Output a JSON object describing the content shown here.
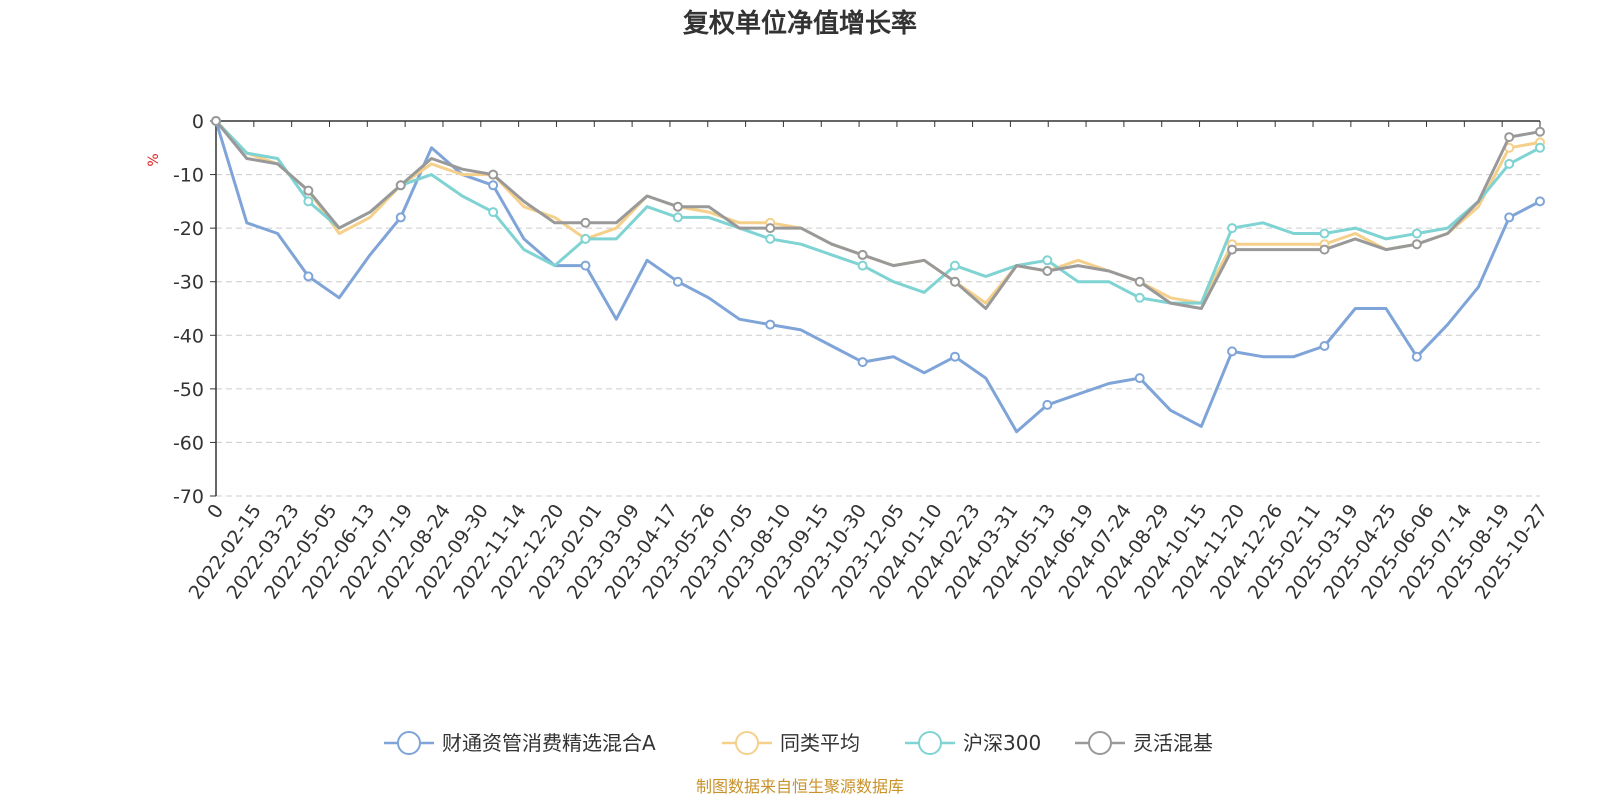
{
  "chart_data": {
    "type": "line",
    "title": "复权单位净值增长率",
    "ylabel": "%",
    "ylim": [
      -70,
      0
    ],
    "y_ticks": [
      0,
      -10,
      -20,
      -30,
      -40,
      -50,
      -60,
      -70
    ],
    "x_tick_labels": [
      "0",
      "2022-02-15",
      "2022-03-23",
      "2022-05-05",
      "2022-06-13",
      "2022-07-19",
      "2022-08-24",
      "2022-09-30",
      "2022-11-14",
      "2022-12-20",
      "2023-02-01",
      "2023-03-09",
      "2023-04-17",
      "2023-05-26",
      "2023-07-05",
      "2023-08-10",
      "2023-09-15",
      "2023-10-30",
      "2023-12-05",
      "2024-01-10",
      "2024-02-23",
      "2024-03-31",
      "2024-05-13",
      "2024-06-19",
      "2024-07-24",
      "2024-08-29",
      "2024-10-15",
      "2024-11-20",
      "2024-12-26",
      "2025-02-11",
      "2025-03-19",
      "2025-04-25",
      "2025-06-06",
      "2025-07-14",
      "2025-08-19",
      "2025-10-27"
    ],
    "grid": "horizontal-dashed",
    "legend_position": "bottom-center",
    "source_note": "制图数据来自恒生聚源数据库",
    "series": [
      {
        "name": "财通资管消费精选混合A",
        "color": "#7fa4d8",
        "values": [
          0,
          -19,
          -21,
          -29,
          -33,
          -25,
          -18,
          -5,
          -10,
          -12,
          -22,
          -27,
          -27,
          -37,
          -26,
          -30,
          -33,
          -37,
          -38,
          -39,
          -42,
          -45,
          -44,
          -47,
          -44,
          -48,
          -58,
          -53,
          -51,
          -49,
          -48,
          -54,
          -57,
          -43,
          -44,
          -44,
          -42,
          -35,
          -35,
          -44,
          -38,
          -31,
          -18,
          -15
        ]
      },
      {
        "name": "同类平均",
        "color": "#f5d08a",
        "values": [
          0,
          -6,
          -8,
          -13,
          -21,
          -18,
          -12,
          -8,
          -10,
          -10,
          -16,
          -18,
          -22,
          -20,
          -14,
          -16,
          -17,
          -19,
          -19,
          -20,
          -23,
          -25,
          -27,
          -26,
          -30,
          -34,
          -27,
          -28,
          -26,
          -28,
          -30,
          -33,
          -34,
          -23,
          -23,
          -23,
          -23,
          -21,
          -24,
          -23,
          -21,
          -16,
          -5,
          -4
        ]
      },
      {
        "name": "沪深300",
        "color": "#7fd3d3",
        "values": [
          0,
          -6,
          -7,
          -15,
          -20,
          -17,
          -12,
          -10,
          -14,
          -17,
          -24,
          -27,
          -22,
          -22,
          -16,
          -18,
          -18,
          -20,
          -22,
          -23,
          -25,
          -27,
          -30,
          -32,
          -27,
          -29,
          -27,
          -26,
          -30,
          -30,
          -33,
          -34,
          -34,
          -20,
          -19,
          -21,
          -21,
          -20,
          -22,
          -21,
          -20,
          -15,
          -8,
          -5
        ]
      },
      {
        "name": "灵活混基",
        "color": "#999999",
        "values": [
          0,
          -7,
          -8,
          -13,
          -20,
          -17,
          -12,
          -7,
          -9,
          -10,
          -15,
          -19,
          -19,
          -19,
          -14,
          -16,
          -16,
          -20,
          -20,
          -20,
          -23,
          -25,
          -27,
          -26,
          -30,
          -35,
          -27,
          -28,
          -27,
          -28,
          -30,
          -34,
          -35,
          -24,
          -24,
          -24,
          -24,
          -22,
          -24,
          -23,
          -21,
          -15,
          -3,
          -2
        ]
      }
    ]
  }
}
